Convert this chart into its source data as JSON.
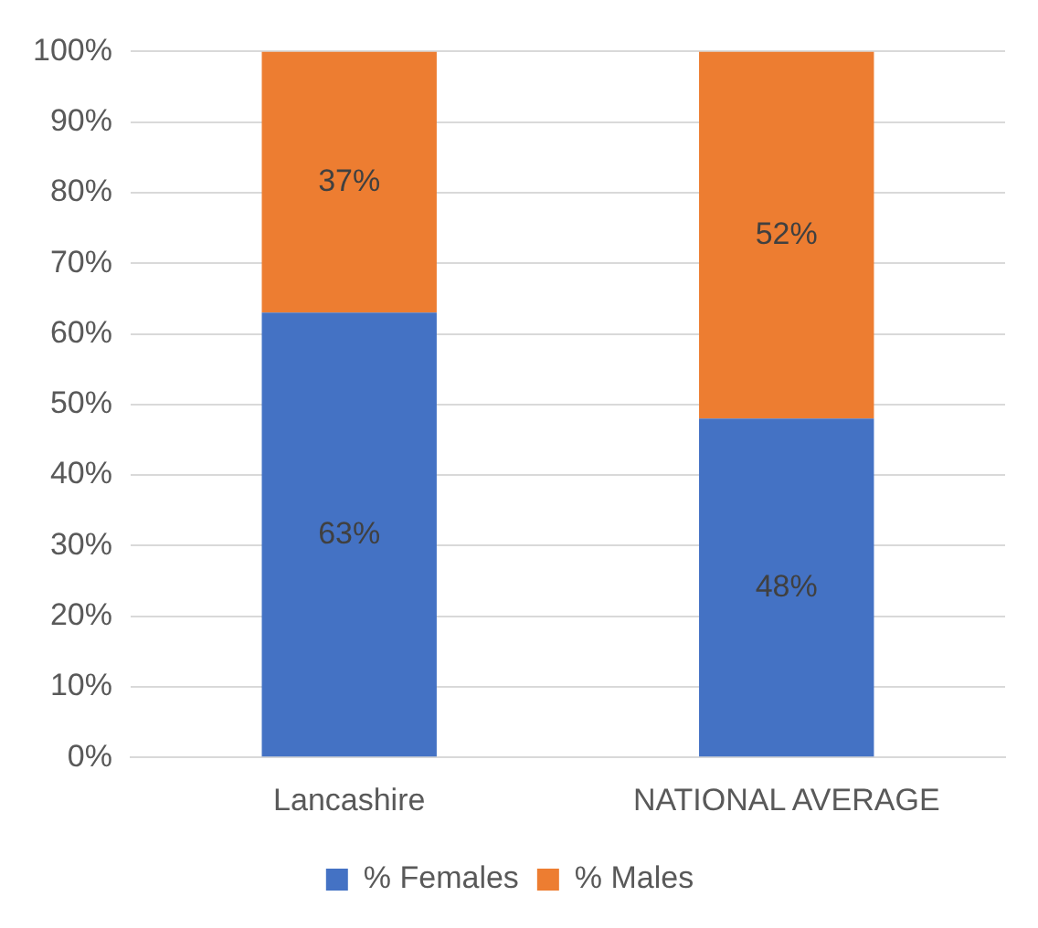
{
  "chart_data": {
    "type": "bar",
    "stacked": true,
    "categories": [
      "Lancashire",
      "NATIONAL AVERAGE"
    ],
    "series": [
      {
        "name": "% Females",
        "color": "#4472c4",
        "values": [
          63,
          48
        ],
        "value_labels": [
          "63%",
          "48%"
        ]
      },
      {
        "name": "% Males",
        "color": "#ed7d31",
        "values": [
          37,
          52
        ],
        "value_labels": [
          "37%",
          "52%"
        ]
      }
    ],
    "ylim": [
      0,
      100
    ],
    "yticks": [
      {
        "value": 0,
        "label": "0%"
      },
      {
        "value": 10,
        "label": "10%"
      },
      {
        "value": 20,
        "label": "20%"
      },
      {
        "value": 30,
        "label": "30%"
      },
      {
        "value": 40,
        "label": "40%"
      },
      {
        "value": 50,
        "label": "50%"
      },
      {
        "value": 60,
        "label": "60%"
      },
      {
        "value": 70,
        "label": "70%"
      },
      {
        "value": 80,
        "label": "80%"
      },
      {
        "value": 90,
        "label": "90%"
      },
      {
        "value": 100,
        "label": "100%"
      }
    ],
    "grid": "y",
    "legend": "bottom"
  }
}
